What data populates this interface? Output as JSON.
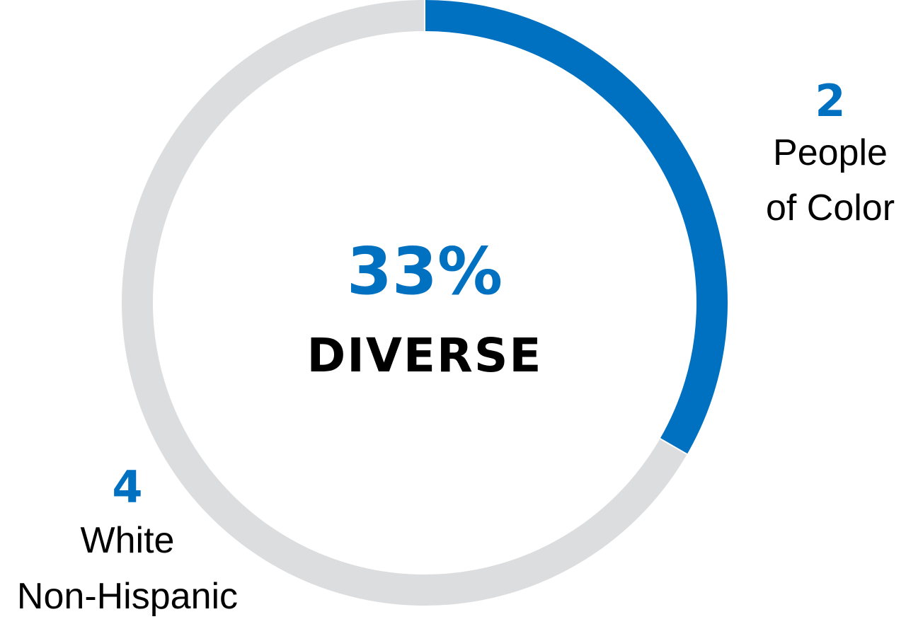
{
  "chart_data": {
    "type": "pie",
    "donut": true,
    "center": {
      "value": "33%",
      "label": "DIVERSE"
    },
    "slices": [
      {
        "count": 2,
        "count_label": "2",
        "label_lines": [
          "People",
          "of Color"
        ],
        "color": "#0070c0"
      },
      {
        "count": 4,
        "count_label": "4",
        "label_lines": [
          "White",
          "Non-Hispanic"
        ],
        "color": "#dcdddf"
      }
    ],
    "legend": "none",
    "grid": false
  },
  "colors": {
    "accent": "#0070c0",
    "track": "#dcdddf",
    "text": "#000000",
    "background": "#ffffff"
  }
}
